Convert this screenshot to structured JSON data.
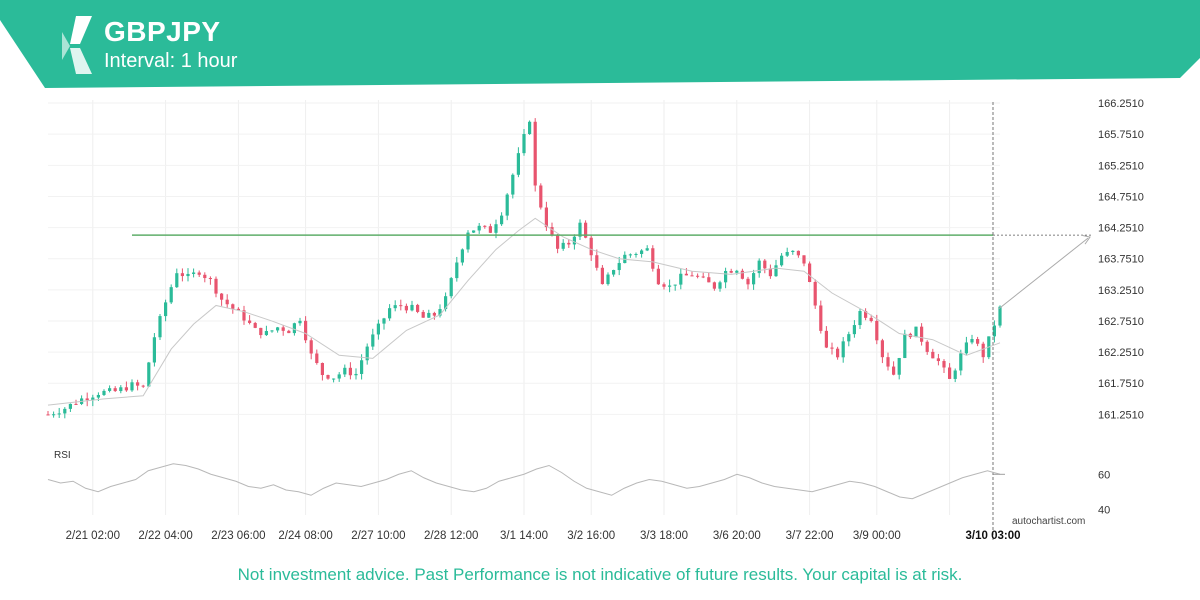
{
  "header": {
    "symbol": "GBPJPY",
    "interval": "Interval: 1 hour",
    "brand_color": "#2bbb99",
    "logo_icon": "autochartist-logo-icon"
  },
  "footer": {
    "disclaimer": "Not investment advice. Past Performance is not indicative of future results. Your capital is at risk.",
    "watermark": "autochartist.com"
  },
  "chart_data": [
    {
      "type": "candlestick",
      "title": "GBPJPY",
      "interval": "1 hour",
      "y_ticks": [
        "166.2510",
        "165.7510",
        "165.2510",
        "164.7510",
        "164.2510",
        "163.7510",
        "163.2510",
        "162.7510",
        "162.2510",
        "161.7510",
        "161.2510"
      ],
      "ylim": [
        161.0,
        166.3
      ],
      "x_ticks": [
        "2/21 02:00",
        "2/22 04:00",
        "2/23 06:00",
        "2/24 08:00",
        "2/27 10:00",
        "2/28 12:00",
        "3/1 14:00",
        "3/2 16:00",
        "3/3 18:00",
        "3/6 20:00",
        "3/7 22:00",
        "3/9 00:00",
        "3/10 03:00"
      ],
      "highlight_x_tick": "3/10 03:00",
      "resistance_level": 164.13,
      "resistance_color": "#5fae6a",
      "projection_target": 164.13,
      "bull_color": "#2bbb99",
      "bear_color": "#e8546e",
      "close_path": [
        [
          0,
          161.25
        ],
        [
          3,
          161.35
        ],
        [
          6,
          161.5
        ],
        [
          9,
          161.6
        ],
        [
          12,
          161.62
        ],
        [
          15,
          161.72
        ],
        [
          17,
          161.68
        ],
        [
          19,
          162.5
        ],
        [
          21,
          163.05
        ],
        [
          23,
          163.55
        ],
        [
          25,
          163.45
        ],
        [
          27,
          163.55
        ],
        [
          29,
          163.4
        ],
        [
          31,
          163.1
        ],
        [
          33,
          162.95
        ],
        [
          35,
          162.8
        ],
        [
          37,
          162.6
        ],
        [
          39,
          162.55
        ],
        [
          41,
          162.65
        ],
        [
          43,
          162.6
        ],
        [
          45,
          162.8
        ],
        [
          47,
          162.2
        ],
        [
          49,
          161.9
        ],
        [
          51,
          161.85
        ],
        [
          53,
          161.95
        ],
        [
          55,
          161.9
        ],
        [
          57,
          162.35
        ],
        [
          59,
          162.65
        ],
        [
          61,
          162.95
        ],
        [
          63,
          163.0
        ],
        [
          65,
          162.95
        ],
        [
          67,
          162.8
        ],
        [
          69,
          162.85
        ],
        [
          71,
          163.1
        ],
        [
          73,
          163.7
        ],
        [
          75,
          164.2
        ],
        [
          77,
          164.25
        ],
        [
          79,
          164.2
        ],
        [
          81,
          164.5
        ],
        [
          83,
          165.1
        ],
        [
          85,
          165.7
        ],
        [
          86,
          166.0
        ],
        [
          87,
          164.9
        ],
        [
          89,
          164.3
        ],
        [
          91,
          163.9
        ],
        [
          93,
          164.0
        ],
        [
          95,
          164.3
        ],
        [
          97,
          163.85
        ],
        [
          99,
          163.3
        ],
        [
          101,
          163.6
        ],
        [
          103,
          163.8
        ],
        [
          105,
          163.85
        ],
        [
          107,
          163.9
        ],
        [
          109,
          163.4
        ],
        [
          111,
          163.3
        ],
        [
          113,
          163.45
        ],
        [
          115,
          163.5
        ],
        [
          117,
          163.4
        ],
        [
          119,
          163.3
        ],
        [
          121,
          163.55
        ],
        [
          123,
          163.6
        ],
        [
          125,
          163.35
        ],
        [
          127,
          163.7
        ],
        [
          129,
          163.5
        ],
        [
          131,
          163.8
        ],
        [
          133,
          163.85
        ],
        [
          135,
          163.7
        ],
        [
          137,
          163.0
        ],
        [
          139,
          162.3
        ],
        [
          141,
          162.2
        ],
        [
          143,
          162.55
        ],
        [
          145,
          162.9
        ],
        [
          147,
          162.8
        ],
        [
          149,
          162.2
        ],
        [
          151,
          161.9
        ],
        [
          153,
          162.5
        ],
        [
          155,
          162.6
        ],
        [
          157,
          162.3
        ],
        [
          159,
          162.1
        ],
        [
          161,
          161.8
        ],
        [
          163,
          162.2
        ],
        [
          165,
          162.5
        ],
        [
          167,
          162.2
        ],
        [
          169,
          162.7
        ],
        [
          170,
          162.95
        ]
      ],
      "ma_path": [
        [
          0,
          161.4
        ],
        [
          10,
          161.5
        ],
        [
          17,
          161.55
        ],
        [
          22,
          162.3
        ],
        [
          26,
          162.7
        ],
        [
          30,
          163.0
        ],
        [
          35,
          162.9
        ],
        [
          40,
          162.75
        ],
        [
          46,
          162.55
        ],
        [
          52,
          162.2
        ],
        [
          58,
          162.15
        ],
        [
          64,
          162.6
        ],
        [
          70,
          162.85
        ],
        [
          75,
          163.4
        ],
        [
          80,
          163.9
        ],
        [
          84,
          164.2
        ],
        [
          87,
          164.4
        ],
        [
          92,
          164.1
        ],
        [
          97,
          163.9
        ],
        [
          102,
          163.75
        ],
        [
          108,
          163.7
        ],
        [
          115,
          163.55
        ],
        [
          122,
          163.5
        ],
        [
          130,
          163.6
        ],
        [
          135,
          163.55
        ],
        [
          140,
          163.2
        ],
        [
          146,
          162.9
        ],
        [
          152,
          162.55
        ],
        [
          158,
          162.45
        ],
        [
          164,
          162.2
        ],
        [
          170,
          162.4
        ]
      ]
    },
    {
      "type": "line",
      "title": "RSI",
      "y_ticks": [
        "60",
        "40"
      ],
      "ylim": [
        35,
        75
      ],
      "values": [
        57,
        55,
        56,
        52,
        50,
        53,
        55,
        57,
        62,
        64,
        66,
        65,
        63,
        60,
        58,
        56,
        53,
        52,
        54,
        51,
        50,
        48,
        52,
        55,
        54,
        53,
        55,
        57,
        60,
        62,
        58,
        55,
        53,
        51,
        50,
        52,
        56,
        58,
        60,
        63,
        65,
        61,
        56,
        52,
        50,
        48,
        52,
        55,
        57,
        56,
        54,
        52,
        53,
        55,
        57,
        60,
        58,
        55,
        53,
        52,
        51,
        50,
        52,
        54,
        56,
        55,
        53,
        50,
        47,
        46,
        49,
        52,
        55,
        58,
        60,
        62,
        60
      ]
    }
  ]
}
